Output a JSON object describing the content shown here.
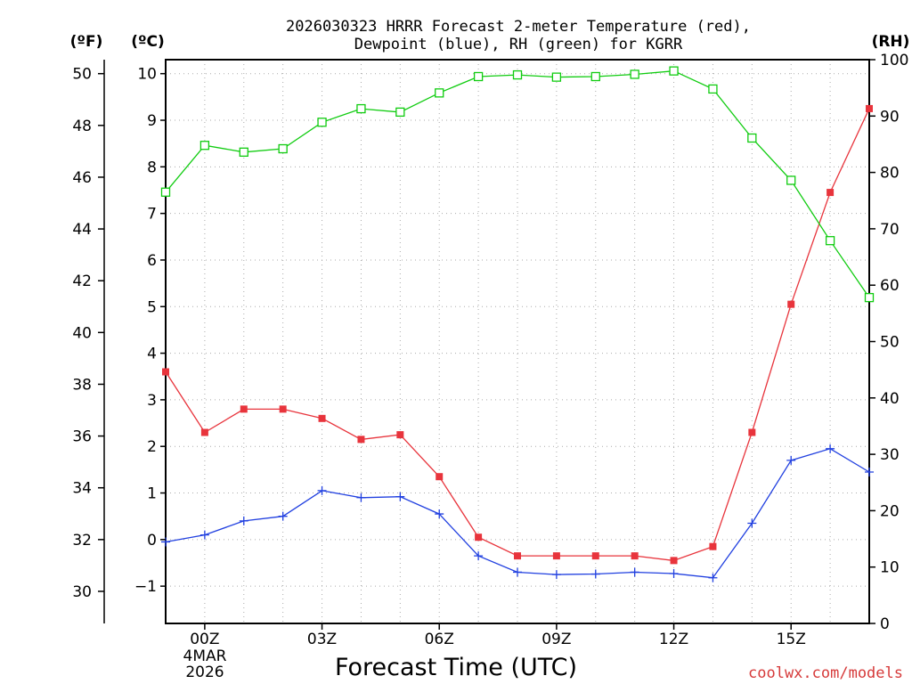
{
  "chart_data": {
    "type": "line",
    "title_lines": [
      "2026030323 HRRR Forecast 2-meter Temperature (red),",
      "Dewpoint (blue), RH (green) for KGRR"
    ],
    "xlabel": "Forecast Time (UTC)",
    "credit": "coolwx.com/models",
    "x_hours": [
      -1,
      0,
      1,
      2,
      3,
      4,
      5,
      6,
      7,
      8,
      9,
      10,
      11,
      12,
      13,
      14,
      15,
      16,
      17
    ],
    "xlim": [
      -1,
      17
    ],
    "x_ticks": [
      {
        "hour": 0,
        "label": "00Z"
      },
      {
        "hour": 3,
        "label": "03Z"
      },
      {
        "hour": 6,
        "label": "06Z"
      },
      {
        "hour": 9,
        "label": "09Z"
      },
      {
        "hour": 12,
        "label": "12Z"
      },
      {
        "hour": 15,
        "label": "15Z"
      }
    ],
    "date_labels": [
      "4MAR",
      "2026"
    ],
    "left_axis_c": {
      "unit": "(ºC)",
      "ylim": [
        -1.8,
        10.3
      ],
      "ticks": [
        -1,
        0,
        1,
        2,
        3,
        4,
        5,
        6,
        7,
        8,
        9,
        10
      ],
      "tick_labels": [
        "−1",
        "0",
        "1",
        "2",
        "3",
        "4",
        "5",
        "6",
        "7",
        "8",
        "9",
        "10"
      ]
    },
    "left_axis_f": {
      "unit": "(ºF)",
      "ticks": [
        30,
        32,
        34,
        36,
        38,
        40,
        42,
        44,
        46,
        48,
        50
      ],
      "tick_labels": [
        "30",
        "32",
        "34",
        "36",
        "38",
        "40",
        "42",
        "44",
        "46",
        "48",
        "50"
      ]
    },
    "right_axis_rh": {
      "unit": "(RH)",
      "ylim": [
        0,
        100
      ],
      "ticks": [
        0,
        10,
        20,
        30,
        40,
        50,
        60,
        70,
        80,
        90,
        100
      ],
      "tick_labels": [
        "0",
        "10",
        "20",
        "30",
        "40",
        "50",
        "60",
        "70",
        "80",
        "90",
        "100"
      ]
    },
    "grid": true,
    "series": [
      {
        "name": "Temperature",
        "axis": "celsius",
        "color": "#e8343c",
        "marker": "filled-square",
        "values": [
          3.6,
          2.3,
          2.8,
          2.8,
          2.6,
          2.15,
          2.25,
          1.35,
          0.05,
          -0.35,
          -0.35,
          -0.35,
          -0.35,
          -0.45,
          -0.15,
          2.3,
          5.05,
          7.45,
          9.25
        ]
      },
      {
        "name": "Dewpoint",
        "axis": "celsius",
        "color": "#2140e0",
        "marker": "plus",
        "values": [
          -0.05,
          0.1,
          0.4,
          0.5,
          1.05,
          0.9,
          0.92,
          0.55,
          -0.35,
          -0.7,
          -0.75,
          -0.74,
          -0.7,
          -0.73,
          -0.82,
          0.35,
          1.7,
          1.95,
          1.45
        ]
      },
      {
        "name": "RH",
        "axis": "rh",
        "color": "#10cc10",
        "marker": "open-square",
        "values": [
          76.5,
          84.8,
          83.6,
          84.2,
          88.9,
          91.3,
          90.7,
          94.1,
          97.0,
          97.3,
          96.9,
          97.0,
          97.4,
          98.0,
          94.8,
          86.1,
          78.6,
          67.9,
          57.8
        ]
      }
    ],
    "colors": {
      "grid": "#aaaaaa",
      "credit": "#d63a3a",
      "axis": "#000000"
    }
  }
}
